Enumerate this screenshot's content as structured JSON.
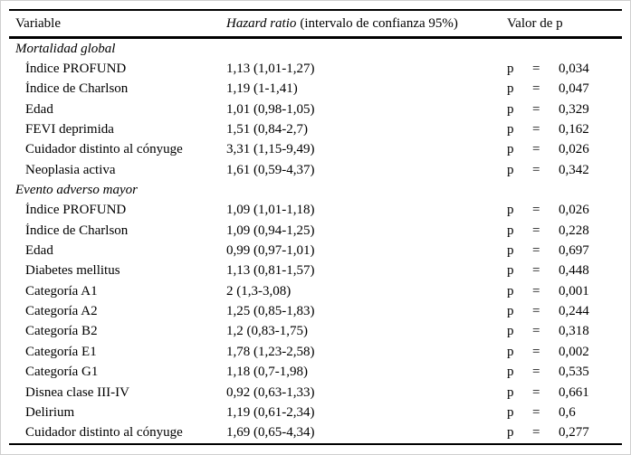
{
  "page": {
    "background": "#ffffff",
    "frame_color": "#cfcfcf",
    "rule_color": "#000000",
    "text_color": "#000000"
  },
  "table": {
    "columns": {
      "variable": "Variable",
      "hazard_ratio_italic": "Hazard ratio",
      "hazard_ratio_rest": "(intervalo de confianza 95%)",
      "p_value": "Valor de p"
    },
    "p_label": "p",
    "equals": "=",
    "sections": [
      {
        "title": "Mortalidad global",
        "rows": [
          {
            "variable": "Índice PROFUND",
            "hazard": "1,13 (1,01-1,27)",
            "p": "0,034"
          },
          {
            "variable": "Índice de Charlson",
            "hazard": "1,19 (1-1,41)",
            "p": "0,047"
          },
          {
            "variable": "Edad",
            "hazard": "1,01 (0,98-1,05)",
            "p": "0,329"
          },
          {
            "variable": "FEVI deprimida",
            "hazard": "1,51 (0,84-2,7)",
            "p": "0,162"
          },
          {
            "variable": "Cuidador distinto al cónyuge",
            "hazard": "3,31 (1,15-9,49)",
            "p": "0,026"
          },
          {
            "variable": "Neoplasia activa",
            "hazard": "1,61 (0,59-4,37)",
            "p": "0,342"
          }
        ]
      },
      {
        "title": "Evento adverso mayor",
        "rows": [
          {
            "variable": "Índice PROFUND",
            "hazard": "1,09 (1,01-1,18)",
            "p": "0,026"
          },
          {
            "variable": "Índice de Charlson",
            "hazard": "1,09 (0,94-1,25)",
            "p": "0,228"
          },
          {
            "variable": "Edad",
            "hazard": "0,99 (0,97-1,01)",
            "p": "0,697"
          },
          {
            "variable": "Diabetes mellitus",
            "hazard": "1,13 (0,81-1,57)",
            "p": "0,448"
          },
          {
            "variable": "Categoría A1",
            "hazard": "2 (1,3-3,08)",
            "p": "0,001"
          },
          {
            "variable": "Categoría A2",
            "hazard": "1,25 (0,85-1,83)",
            "p": "0,244"
          },
          {
            "variable": "Categoría B2",
            "hazard": "1,2 (0,83-1,75)",
            "p": "0,318"
          },
          {
            "variable": "Categoría E1",
            "hazard": "1,78 (1,23-2,58)",
            "p": "0,002"
          },
          {
            "variable": "Categoría G1",
            "hazard": "1,18 (0,7-1,98)",
            "p": "0,535"
          },
          {
            "variable": "Disnea clase III-IV",
            "hazard": "0,92 (0,63-1,33)",
            "p": "0,661"
          },
          {
            "variable": "Delirium",
            "hazard": "1,19 (0,61-2,34)",
            "p": "0,6"
          },
          {
            "variable": "Cuidador distinto al cónyuge",
            "hazard": "1,69 (0,65-4,34)",
            "p": "0,277"
          }
        ]
      }
    ]
  }
}
